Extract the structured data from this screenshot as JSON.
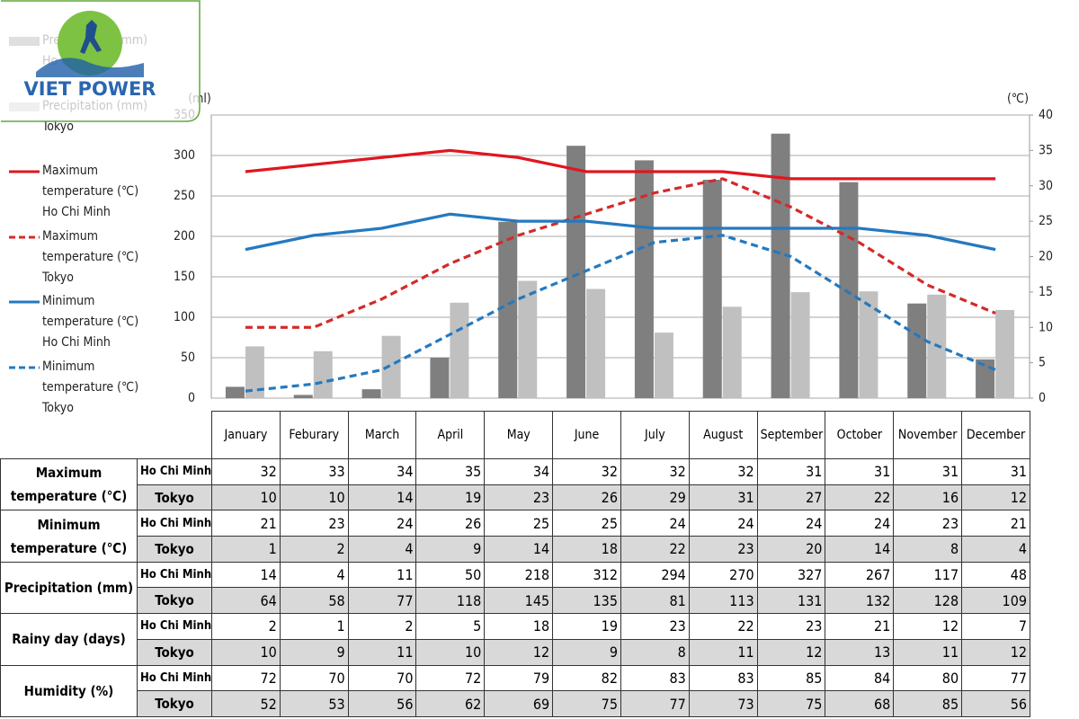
{
  "logo": {
    "text": "VIET POWER"
  },
  "chart_data": {
    "type": "bar-line",
    "y_label": "(ml)",
    "y2_label": "(℃)",
    "categories": [
      "January",
      "Feburary",
      "March",
      "April",
      "May",
      "June",
      "July",
      "August",
      "September",
      "October",
      "November",
      "December"
    ],
    "ylim": [
      0,
      350
    ],
    "yticks": [
      0,
      50,
      100,
      150,
      200,
      250,
      300,
      350
    ],
    "y2lim": [
      0,
      40
    ],
    "y2ticks": [
      0,
      5,
      10,
      15,
      20,
      25,
      30,
      35,
      40
    ],
    "grid": true,
    "legend": "left",
    "series": [
      {
        "name": "Precipitation (mm) Ho Chi Minh",
        "kind": "bar",
        "color": "#7f7f7f",
        "values": [
          14,
          4,
          11,
          50,
          218,
          312,
          294,
          270,
          327,
          267,
          117,
          48
        ]
      },
      {
        "name": "Precipitation (mm) Tokyo",
        "kind": "bar",
        "color": "#c0c0c0",
        "values": [
          64,
          58,
          77,
          118,
          145,
          135,
          81,
          113,
          131,
          132,
          128,
          109
        ]
      },
      {
        "name": "Maximum temperature (℃) Ho Chi Minh",
        "kind": "line",
        "axis": "y2",
        "color": "#e0161e",
        "dashed": false,
        "values": [
          32,
          33,
          34,
          35,
          34,
          32,
          32,
          32,
          31,
          31,
          31,
          31
        ]
      },
      {
        "name": "Maximum temperature (℃) Tokyo",
        "kind": "line",
        "axis": "y2",
        "color": "#d42a2a",
        "dashed": true,
        "values": [
          10,
          10,
          14,
          19,
          23,
          26,
          29,
          31,
          27,
          22,
          16,
          12
        ]
      },
      {
        "name": "Minimum temperature (℃) Ho Chi Minh",
        "kind": "line",
        "axis": "y2",
        "color": "#2479c0",
        "dashed": false,
        "values": [
          21,
          23,
          24,
          26,
          25,
          25,
          24,
          24,
          24,
          24,
          23,
          21
        ]
      },
      {
        "name": "Minimum temperature (℃) Tokyo",
        "kind": "line",
        "axis": "y2",
        "color": "#2479c0",
        "dashed": true,
        "values": [
          1,
          2,
          4,
          9,
          14,
          18,
          22,
          23,
          20,
          14,
          8,
          4
        ]
      }
    ]
  },
  "table": {
    "rows": [
      {
        "group": "Maximum temperature (℃)",
        "cities": [
          {
            "city": "Ho Chi Minh",
            "values": [
              32,
              33,
              34,
              35,
              34,
              32,
              32,
              32,
              31,
              31,
              31,
              31
            ]
          },
          {
            "city": "Tokyo",
            "values": [
              10,
              10,
              14,
              19,
              23,
              26,
              29,
              31,
              27,
              22,
              16,
              12
            ]
          }
        ]
      },
      {
        "group": "Minimum temperature (℃)",
        "cities": [
          {
            "city": "Ho Chi Minh",
            "values": [
              21,
              23,
              24,
              26,
              25,
              25,
              24,
              24,
              24,
              24,
              23,
              21
            ]
          },
          {
            "city": "Tokyo",
            "values": [
              1,
              2,
              4,
              9,
              14,
              18,
              22,
              23,
              20,
              14,
              8,
              4
            ]
          }
        ]
      },
      {
        "group": "Precipitation (mm)",
        "cities": [
          {
            "city": "Ho Chi Minh",
            "values": [
              14,
              4,
              11,
              50,
              218,
              312,
              294,
              270,
              327,
              267,
              117,
              48
            ]
          },
          {
            "city": "Tokyo",
            "values": [
              64,
              58,
              77,
              118,
              145,
              135,
              81,
              113,
              131,
              132,
              128,
              109
            ]
          }
        ]
      },
      {
        "group": "Rainy day (days)",
        "cities": [
          {
            "city": "Ho Chi Minh",
            "values": [
              2,
              1,
              2,
              5,
              18,
              19,
              23,
              22,
              23,
              21,
              12,
              7
            ]
          },
          {
            "city": "Tokyo",
            "values": [
              10,
              9,
              11,
              10,
              12,
              9,
              8,
              11,
              12,
              13,
              11,
              12
            ]
          }
        ]
      },
      {
        "group": "Humidity (%)",
        "cities": [
          {
            "city": "Ho Chi Minh",
            "values": [
              72,
              70,
              70,
              72,
              79,
              82,
              83,
              83,
              85,
              84,
              80,
              77
            ]
          },
          {
            "city": "Tokyo",
            "values": [
              52,
              53,
              56,
              62,
              69,
              75,
              77,
              73,
              75,
              68,
              85,
              56
            ]
          }
        ]
      }
    ]
  }
}
